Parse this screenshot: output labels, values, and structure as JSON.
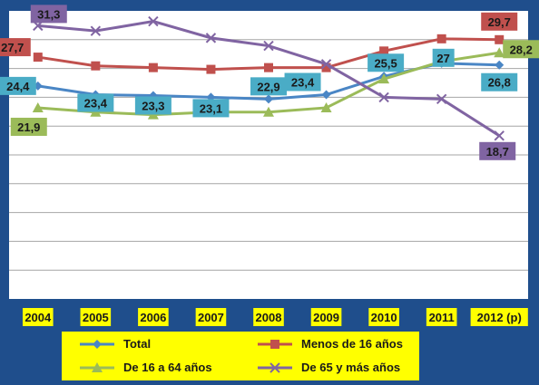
{
  "chart_data": {
    "type": "line",
    "categories": [
      "2004",
      "2005",
      "2006",
      "2007",
      "2008",
      "2009",
      "2010",
      "2011",
      "2012 (p)"
    ],
    "ylim": [
      0,
      33
    ],
    "grid": true,
    "legend_position": "bottom",
    "series": [
      {
        "name": "Total",
        "color": "#4a86c5",
        "marker": "diamond",
        "values": [
          24.4,
          23.4,
          23.3,
          23.1,
          22.9,
          23.4,
          25.5,
          27.0,
          26.8
        ],
        "labels": {
          "0": "24,4",
          "1": "23,4",
          "2": "23,3",
          "3": "23,1",
          "4": "22,9",
          "5": "23,4",
          "6": "25,5",
          "7": "27",
          "8": "26,8"
        },
        "label_bg": "#4aacc6"
      },
      {
        "name": "Menos de 16 años",
        "color": "#c0504d",
        "marker": "square",
        "values": [
          27.7,
          26.7,
          26.5,
          26.3,
          26.5,
          26.5,
          28.4,
          29.8,
          29.7
        ],
        "labels": {
          "0": "27,7",
          "8": "29,7"
        },
        "label_bg": "#c0504d"
      },
      {
        "name": "De 16 a 64 años",
        "color": "#9bbb59",
        "marker": "triangle",
        "values": [
          21.9,
          21.4,
          21.1,
          21.4,
          21.4,
          21.9,
          25.2,
          27.2,
          28.2
        ],
        "labels": {
          "0": "21,9",
          "8": "28,2"
        },
        "label_bg": "#9bbb59"
      },
      {
        "name": "De 65 y más años",
        "color": "#8064a2",
        "marker": "x",
        "values": [
          31.3,
          30.7,
          31.8,
          29.9,
          29.0,
          26.9,
          23.1,
          22.9,
          18.7
        ],
        "labels": {
          "0": "31,3",
          "8": "18,7"
        },
        "label_bg": "#8064a2"
      }
    ]
  }
}
